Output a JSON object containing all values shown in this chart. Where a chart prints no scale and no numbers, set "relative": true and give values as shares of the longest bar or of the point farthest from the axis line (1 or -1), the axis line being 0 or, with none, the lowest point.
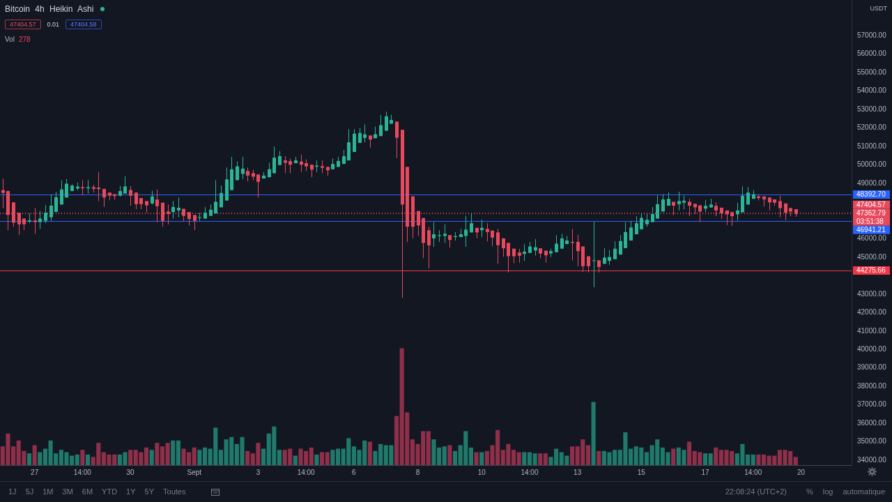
{
  "chart_data": [
    {
      "type": "candlestick",
      "title": "Bitcoin 4h Heikin Ashi",
      "ylabel": "USDT",
      "categories": [
        null,
        null,
        null,
        null,
        null,
        null,
        "27",
        null,
        null,
        null,
        null,
        null,
        null,
        null,
        null,
        "14:00",
        null,
        null,
        null,
        null,
        null,
        null,
        null,
        null,
        "30",
        null,
        null,
        null,
        null,
        null,
        null,
        null,
        null,
        null,
        null,
        null,
        "Sept",
        null,
        null,
        null,
        null,
        null,
        null,
        null,
        null,
        null,
        null,
        null,
        "3",
        null,
        null,
        null,
        null,
        null,
        null,
        null,
        null,
        "14:00",
        null,
        null,
        null,
        null,
        null,
        null,
        null,
        null,
        "6",
        null,
        null,
        null,
        null,
        null,
        null,
        null,
        null,
        null,
        null,
        null,
        "8",
        null,
        null,
        null,
        null,
        null,
        null,
        null,
        null,
        null,
        null,
        null,
        "10",
        null,
        null,
        null,
        null,
        null,
        null,
        null,
        null,
        "14:00",
        null,
        null,
        null,
        null,
        null,
        null,
        null,
        null,
        "13",
        null,
        null,
        null,
        null,
        null,
        null,
        null,
        null,
        null,
        null,
        null,
        "15",
        null,
        null,
        null,
        null,
        null,
        null,
        null,
        null,
        null,
        null,
        null,
        "17",
        null,
        null,
        null,
        null,
        null,
        null,
        null,
        null,
        "14:00",
        null,
        null,
        null,
        null,
        null,
        null,
        null,
        null,
        "20",
        null,
        null,
        null,
        null,
        null,
        null,
        null,
        null,
        null
      ],
      "ohlc": [
        [
          48630,
          49250,
          47660,
          48480
        ],
        [
          48580,
          48600,
          46460,
          47290
        ],
        [
          47970,
          47970,
          46650,
          46870
        ],
        [
          47410,
          47410,
          46210,
          46780
        ],
        [
          47090,
          47090,
          46460,
          46780
        ],
        [
          46930,
          47370,
          46840,
          47000
        ],
        [
          46990,
          47660,
          46270,
          46900
        ],
        [
          46900,
          47500,
          46530,
          47090
        ],
        [
          46970,
          47820,
          46840,
          47410
        ],
        [
          47160,
          48410,
          46970,
          47790
        ],
        [
          47450,
          48540,
          47450,
          48250
        ],
        [
          47850,
          49170,
          47850,
          48670
        ],
        [
          48230,
          49230,
          48230,
          48980
        ],
        [
          48580,
          48950,
          48580,
          48880
        ],
        [
          48720,
          49040,
          48630,
          48820
        ],
        [
          48790,
          49170,
          48350,
          48730
        ],
        [
          48730,
          49170,
          48450,
          48790
        ],
        [
          48790,
          48920,
          48500,
          48700
        ],
        [
          48770,
          49610,
          48040,
          48690
        ],
        [
          48700,
          48700,
          47720,
          48230
        ],
        [
          48500,
          48500,
          48100,
          48330
        ],
        [
          48410,
          48410,
          48100,
          48310
        ],
        [
          48330,
          48860,
          48290,
          48580
        ],
        [
          48450,
          49380,
          48450,
          48830
        ],
        [
          48640,
          48860,
          47790,
          48330
        ],
        [
          48500,
          48500,
          47600,
          47870
        ],
        [
          48200,
          48200,
          47600,
          47870
        ],
        [
          48040,
          48040,
          47410,
          47810
        ],
        [
          47910,
          48600,
          47850,
          48290
        ],
        [
          48120,
          48670,
          46900,
          47760
        ],
        [
          47950,
          47950,
          46650,
          46970
        ],
        [
          47470,
          47850,
          46780,
          47340
        ],
        [
          47440,
          48040,
          47090,
          47720
        ],
        [
          47530,
          48230,
          47160,
          47680
        ],
        [
          47620,
          47620,
          46970,
          47240
        ],
        [
          47440,
          47440,
          46720,
          47070
        ],
        [
          47280,
          47280,
          46460,
          46970
        ],
        [
          47130,
          47410,
          46970,
          47170
        ],
        [
          47090,
          47720,
          47090,
          47410
        ],
        [
          47240,
          47850,
          47240,
          47570
        ],
        [
          47370,
          49170,
          47370,
          48000
        ],
        [
          47700,
          48880,
          47700,
          48480
        ],
        [
          48070,
          49860,
          48070,
          49210
        ],
        [
          48630,
          50430,
          48630,
          49760
        ],
        [
          49170,
          50180,
          49170,
          49920
        ],
        [
          49510,
          50430,
          49230,
          49800
        ],
        [
          49670,
          49860,
          49110,
          49420
        ],
        [
          49550,
          49740,
          49170,
          49360
        ],
        [
          49480,
          49480,
          48230,
          49080
        ],
        [
          49260,
          49610,
          49260,
          49420
        ],
        [
          49330,
          50110,
          49330,
          49760
        ],
        [
          49550,
          50990,
          49550,
          50390
        ],
        [
          49990,
          50740,
          49990,
          50470
        ],
        [
          50240,
          50470,
          49550,
          50110
        ],
        [
          50200,
          50330,
          49550,
          50010
        ],
        [
          50090,
          50430,
          50090,
          50240
        ],
        [
          50180,
          50560,
          49610,
          50010
        ],
        [
          50090,
          50300,
          49670,
          49920
        ],
        [
          50010,
          50010,
          49330,
          49740
        ],
        [
          49900,
          50240,
          49610,
          49960
        ],
        [
          49930,
          50240,
          49550,
          49840
        ],
        [
          49890,
          49890,
          49420,
          49710
        ],
        [
          49760,
          50340,
          49760,
          50050
        ],
        [
          49890,
          50430,
          49890,
          50210
        ],
        [
          50050,
          50810,
          50050,
          50470
        ],
        [
          50240,
          51940,
          50240,
          51220
        ],
        [
          50700,
          51940,
          50700,
          51690
        ],
        [
          51190,
          52000,
          51190,
          51730
        ],
        [
          51460,
          52190,
          51220,
          51650
        ],
        [
          51590,
          51590,
          50930,
          51370
        ],
        [
          51440,
          52070,
          51440,
          51660
        ],
        [
          51560,
          52700,
          51560,
          52150
        ],
        [
          51850,
          52880,
          51850,
          52630
        ],
        [
          52230,
          52700,
          52230,
          52430
        ],
        [
          52340,
          52340,
          50370,
          51470
        ],
        [
          51900,
          51900,
          42800,
          47850
        ],
        [
          49890,
          49890,
          45830,
          46650
        ],
        [
          48290,
          48290,
          46020,
          46650
        ],
        [
          47500,
          47500,
          46150,
          46720
        ],
        [
          47120,
          47120,
          44950,
          45770
        ],
        [
          46460,
          46650,
          44390,
          45640
        ],
        [
          46020,
          46900,
          45560,
          46240
        ],
        [
          46140,
          46460,
          45830,
          46190
        ],
        [
          46150,
          46780,
          45770,
          46270
        ],
        [
          46190,
          46190,
          45520,
          45930
        ],
        [
          46090,
          46360,
          45900,
          46140
        ],
        [
          46090,
          46530,
          46090,
          46240
        ],
        [
          46150,
          47240,
          45560,
          46490
        ],
        [
          46340,
          47410,
          46340,
          46840
        ],
        [
          46590,
          46590,
          46020,
          46340
        ],
        [
          46460,
          47030,
          46090,
          46590
        ],
        [
          46530,
          46840,
          45860,
          46360
        ],
        [
          46440,
          46440,
          45580,
          46060
        ],
        [
          46340,
          46530,
          44640,
          45650
        ],
        [
          46020,
          46020,
          45020,
          45480
        ],
        [
          45770,
          45770,
          44170,
          45050
        ],
        [
          45460,
          45460,
          44670,
          45050
        ],
        [
          45250,
          45450,
          44700,
          45080
        ],
        [
          45180,
          45710,
          44800,
          45300
        ],
        [
          45230,
          45830,
          45230,
          45580
        ],
        [
          45360,
          45980,
          45080,
          45540
        ],
        [
          45480,
          45480,
          44950,
          45200
        ],
        [
          45350,
          45350,
          44700,
          45100
        ],
        [
          45200,
          45460,
          45010,
          45330
        ],
        [
          45270,
          46190,
          45270,
          45730
        ],
        [
          45460,
          46270,
          45460,
          46020
        ],
        [
          45710,
          46150,
          45710,
          45900
        ],
        [
          45830,
          46530,
          44830,
          45770
        ],
        [
          45830,
          46210,
          44510,
          45330
        ],
        [
          45580,
          45580,
          44200,
          44510
        ],
        [
          45050,
          45050,
          44170,
          44510
        ],
        [
          44800,
          46920,
          43370,
          44830
        ],
        [
          44830,
          44830,
          44170,
          44470
        ],
        [
          44640,
          45480,
          44640,
          44980
        ],
        [
          44800,
          45390,
          44580,
          45010
        ],
        [
          44890,
          45860,
          44890,
          45460
        ],
        [
          45140,
          46190,
          45140,
          45870
        ],
        [
          45490,
          46900,
          45490,
          46360
        ],
        [
          45900,
          46970,
          45900,
          46610
        ],
        [
          46240,
          47220,
          46240,
          46840
        ],
        [
          46510,
          47410,
          46510,
          47130
        ],
        [
          46780,
          47340,
          46650,
          47030
        ],
        [
          46900,
          47720,
          46900,
          47340
        ],
        [
          47090,
          48350,
          47090,
          47870
        ],
        [
          47470,
          48410,
          47470,
          48130
        ],
        [
          47790,
          48500,
          47790,
          48160
        ],
        [
          48000,
          48000,
          47280,
          47790
        ],
        [
          47870,
          48540,
          47530,
          48040
        ],
        [
          47950,
          48330,
          47600,
          48060
        ],
        [
          48000,
          48160,
          47220,
          47790
        ],
        [
          47890,
          47890,
          47340,
          47700
        ],
        [
          47810,
          47810,
          46900,
          47470
        ],
        [
          47630,
          48100,
          47450,
          47780
        ],
        [
          47690,
          48160,
          47690,
          47850
        ],
        [
          47780,
          47970,
          47220,
          47530
        ],
        [
          47680,
          47680,
          47070,
          47380
        ],
        [
          47530,
          47530,
          46740,
          47320
        ],
        [
          47440,
          47440,
          46690,
          47220
        ],
        [
          47320,
          47950,
          46990,
          47530
        ],
        [
          47430,
          48830,
          47430,
          48330
        ],
        [
          47850,
          48790,
          47850,
          48500
        ],
        [
          48160,
          48630,
          48160,
          48410
        ],
        [
          48290,
          48410,
          48070,
          48200
        ],
        [
          48290,
          48290,
          47750,
          48130
        ],
        [
          48230,
          48230,
          47530,
          47970
        ],
        [
          48130,
          48130,
          47780,
          47950
        ],
        [
          48040,
          48330,
          47160,
          47660
        ],
        [
          47910,
          47910,
          46990,
          47410
        ],
        [
          47660,
          47660,
          47220,
          47470
        ],
        [
          47600,
          47600,
          47190,
          47340
        ],
        null,
        null,
        null,
        null,
        null,
        null,
        null,
        null,
        null,
        null
      ],
      "colors": [
        "#e8495c",
        "#e8495c",
        "#e8495c",
        "#e8495c",
        "#e8495c",
        "#2bb597",
        "#e8495c",
        "#2bb597",
        "#2bb597",
        "#2bb597",
        "#2bb597",
        "#2bb597",
        "#2bb597",
        "#2bb597",
        "#2bb597",
        "#e8495c",
        "#2bb597",
        "#e8495c",
        "#e8495c",
        "#e8495c",
        "#e8495c",
        "#e8495c",
        "#2bb597",
        "#2bb597",
        "#e8495c",
        "#e8495c",
        "#e8495c",
        "#e8495c",
        "#2bb597",
        "#e8495c",
        "#e8495c",
        "#e8495c",
        "#2bb597",
        "#2bb597",
        "#e8495c",
        "#e8495c",
        "#e8495c",
        "#2bb597",
        "#2bb597",
        "#2bb597",
        "#2bb597",
        "#2bb597",
        "#2bb597",
        "#2bb597",
        "#2bb597",
        "#2bb597",
        "#e8495c",
        "#e8495c",
        "#e8495c",
        "#2bb597",
        "#2bb597",
        "#2bb597",
        "#2bb597",
        "#e8495c",
        "#e8495c",
        "#2bb597",
        "#e8495c",
        "#e8495c",
        "#e8495c",
        "#2bb597",
        "#e8495c",
        "#e8495c",
        "#2bb597",
        "#2bb597",
        "#2bb597",
        "#2bb597",
        "#2bb597",
        "#2bb597",
        "#2bb597",
        "#e8495c",
        "#2bb597",
        "#2bb597",
        "#2bb597",
        "#2bb597",
        "#e8495c",
        "#e8495c",
        "#e8495c",
        "#e8495c",
        "#e8495c",
        "#e8495c",
        "#e8495c",
        "#2bb597",
        "#2bb597",
        "#2bb597",
        "#e8495c",
        "#2bb597",
        "#2bb597",
        "#2bb597",
        "#2bb597",
        "#e8495c",
        "#2bb597",
        "#e8495c",
        "#e8495c",
        "#e8495c",
        "#e8495c",
        "#e8495c",
        "#e8495c",
        "#e8495c",
        "#2bb597",
        "#2bb597",
        "#2bb597",
        "#e8495c",
        "#e8495c",
        "#2bb597",
        "#2bb597",
        "#2bb597",
        "#2bb597",
        "#e8495c",
        "#e8495c",
        "#e8495c",
        "#e8495c",
        "#2bb597",
        "#e8495c",
        "#2bb597",
        "#2bb597",
        "#2bb597",
        "#2bb597",
        "#2bb597",
        "#2bb597",
        "#2bb597",
        "#2bb597",
        "#2bb597",
        "#2bb597",
        "#2bb597",
        "#2bb597",
        "#2bb597",
        "#e8495c",
        "#2bb597",
        "#2bb597",
        "#e8495c",
        "#e8495c",
        "#e8495c",
        "#2bb597",
        "#2bb597",
        "#e8495c",
        "#e8495c",
        "#e8495c",
        "#e8495c",
        "#2bb597",
        "#2bb597",
        "#2bb597",
        "#2bb597",
        "#e8495c",
        "#e8495c",
        "#e8495c",
        "#e8495c",
        "#e8495c",
        "#e8495c",
        "#e8495c",
        "#e8495c",
        null,
        null,
        null,
        null,
        null,
        null,
        null,
        null,
        null,
        null
      ],
      "ylim": [
        33740,
        58930
      ],
      "yticks": [
        {
          "value": 34000,
          "label": "34000.00"
        },
        {
          "value": 35000,
          "label": "35000.00"
        },
        {
          "value": 36000,
          "label": "36000.00"
        },
        {
          "value": 37000,
          "label": "37000.00"
        },
        {
          "value": 38000,
          "label": "38000.00"
        },
        {
          "value": 39000,
          "label": "39000.00"
        },
        {
          "value": 40000,
          "label": "40000.00"
        },
        {
          "value": 41000,
          "label": "41000.00"
        },
        {
          "value": 42000,
          "label": "42000.00"
        },
        {
          "value": 43000,
          "label": "43000.00"
        },
        {
          "value": 45000,
          "label": "45000.00"
        },
        {
          "value": 46000,
          "label": "46000.00"
        },
        {
          "value": 49000,
          "label": "49000.00"
        },
        {
          "value": 50000,
          "label": "50000.00"
        },
        {
          "value": 51000,
          "label": "51000.00"
        },
        {
          "value": 52000,
          "label": "52000.00"
        },
        {
          "value": 53000,
          "label": "53000.00"
        },
        {
          "value": 54000,
          "label": "54000.00"
        },
        {
          "value": 55000,
          "label": "55000.00"
        },
        {
          "value": 56000,
          "label": "56000.00"
        },
        {
          "value": 57000,
          "label": "57000.00"
        }
      ],
      "ref_lines": [
        {
          "axis": "y",
          "value": 48392.7,
          "label": "48392.70",
          "color": "#2962ff"
        },
        {
          "axis": "y",
          "value": 47404.57,
          "label": "47404.57",
          "color": "#e8495c",
          "line_style": "dotted"
        },
        {
          "axis": "y",
          "value": 47362.79,
          "label": "47362.79",
          "color": "#e8495c",
          "line_style": "dotted"
        },
        {
          "axis": "y",
          "value": 46941.21,
          "label": "46941.21",
          "color": "#2962ff"
        },
        {
          "axis": "y",
          "value": 44275.66,
          "label": "44275.66",
          "color": "#f23645"
        }
      ],
      "annotations": [
        "47404.57",
        "0.01",
        "47404.58",
        "1J",
        "5J",
        "1M",
        "3M",
        "6M",
        "YTD",
        "1Y",
        "5Y",
        "Toutes",
        "22:08:24 (UTC+2)",
        "%",
        "log",
        "automatique",
        "03:51:38"
      ]
    },
    {
      "type": "bar",
      "relative": true,
      "title": "Vol",
      "annotations": [
        "278"
      ],
      "categories": [
        null,
        null,
        null,
        null,
        null,
        null,
        null,
        null,
        null,
        null,
        null,
        null,
        null,
        null,
        null,
        null,
        null,
        null,
        null,
        null,
        null,
        null,
        null,
        null,
        null,
        null,
        null,
        null,
        null,
        null,
        null,
        null,
        null,
        null,
        null,
        null,
        null,
        null,
        null,
        null,
        null,
        null,
        null,
        null,
        null,
        null,
        null,
        null,
        null,
        null,
        null,
        null,
        null,
        null,
        null,
        null,
        null,
        null,
        null,
        null,
        null,
        null,
        null,
        null,
        null,
        null,
        null,
        null,
        null,
        null,
        null,
        null,
        null,
        null,
        null,
        null,
        null,
        null,
        null,
        null,
        null,
        null,
        null,
        null,
        null,
        null,
        null,
        null,
        null,
        null,
        null,
        null,
        null,
        null,
        null,
        null,
        null,
        null,
        null,
        null,
        null,
        null,
        null,
        null,
        null,
        null,
        null,
        null,
        null,
        null,
        null,
        null,
        null,
        null,
        null,
        null,
        null,
        null,
        null,
        null,
        null,
        null,
        null,
        null,
        null,
        null,
        null,
        null,
        null,
        null,
        null,
        null,
        null,
        null,
        null,
        null,
        null,
        null,
        null,
        null,
        null,
        null,
        null,
        null,
        null,
        null,
        null,
        null,
        null,
        null,
        null,
        null,
        null,
        null,
        null,
        null,
        null,
        null,
        null,
        null
      ],
      "values": [
        0.16,
        0.27,
        0.16,
        0.21,
        0.12,
        0.1,
        0.17,
        0.11,
        0.14,
        0.21,
        0.1,
        0.13,
        0.11,
        0.08,
        0.09,
        0.13,
        0.09,
        0.07,
        0.19,
        0.11,
        0.09,
        0.09,
        0.09,
        0.11,
        0.13,
        0.13,
        0.11,
        0.15,
        0.13,
        0.19,
        0.16,
        0.19,
        0.21,
        0.21,
        0.14,
        0.11,
        0.15,
        0.13,
        0.15,
        0.14,
        0.32,
        0.13,
        0.22,
        0.24,
        0.18,
        0.24,
        0.12,
        0.1,
        0.19,
        0.14,
        0.27,
        0.33,
        0.13,
        0.13,
        0.14,
        0.08,
        0.14,
        0.12,
        0.15,
        0.09,
        0.11,
        0.11,
        0.13,
        0.14,
        0.14,
        0.23,
        0.16,
        0.13,
        0.21,
        0.2,
        0.12,
        0.18,
        0.17,
        0.17,
        0.42,
        1,
        0.45,
        0.22,
        0.18,
        0.29,
        0.29,
        0.22,
        0.15,
        0.16,
        0.17,
        0.12,
        0.17,
        0.29,
        0.15,
        0.11,
        0.11,
        0.12,
        0.17,
        0.3,
        0.13,
        0.18,
        0.13,
        0.11,
        0.11,
        0.11,
        0.1,
        0.1,
        0.1,
        0.07,
        0.14,
        0.11,
        0.08,
        0.16,
        0.16,
        0.22,
        0.17,
        0.54,
        0.12,
        0.12,
        0.11,
        0.13,
        0.13,
        0.28,
        0.14,
        0.16,
        0.15,
        0.11,
        0.17,
        0.22,
        0.15,
        0.11,
        0.14,
        0.15,
        0.13,
        0.2,
        0.12,
        0.11,
        0.1,
        0.1,
        0.15,
        0.13,
        0.13,
        0.12,
        0.1,
        0.18,
        0.09,
        0.09,
        0.09,
        0.09,
        0.08,
        0.08,
        0.13,
        0.13,
        0.12,
        0.07,
        null,
        null,
        null,
        null,
        null,
        null,
        null,
        null,
        null,
        null
      ],
      "colors": [
        "#8f2f49",
        "#8f2f49",
        "#8f2f49",
        "#8f2f49",
        "#8f2f49",
        "#1f7a6c",
        "#8f2f49",
        "#1f7a6c",
        "#1f7a6c",
        "#1f7a6c",
        "#1f7a6c",
        "#1f7a6c",
        "#1f7a6c",
        "#1f7a6c",
        "#1f7a6c",
        "#8f2f49",
        "#1f7a6c",
        "#8f2f49",
        "#8f2f49",
        "#8f2f49",
        "#8f2f49",
        "#8f2f49",
        "#1f7a6c",
        "#1f7a6c",
        "#8f2f49",
        "#8f2f49",
        "#8f2f49",
        "#8f2f49",
        "#1f7a6c",
        "#8f2f49",
        "#8f2f49",
        "#8f2f49",
        "#1f7a6c",
        "#1f7a6c",
        "#8f2f49",
        "#8f2f49",
        "#8f2f49",
        "#1f7a6c",
        "#1f7a6c",
        "#1f7a6c",
        "#1f7a6c",
        "#1f7a6c",
        "#1f7a6c",
        "#1f7a6c",
        "#1f7a6c",
        "#1f7a6c",
        "#8f2f49",
        "#8f2f49",
        "#8f2f49",
        "#1f7a6c",
        "#1f7a6c",
        "#1f7a6c",
        "#1f7a6c",
        "#8f2f49",
        "#8f2f49",
        "#1f7a6c",
        "#8f2f49",
        "#8f2f49",
        "#8f2f49",
        "#1f7a6c",
        "#8f2f49",
        "#8f2f49",
        "#1f7a6c",
        "#1f7a6c",
        "#1f7a6c",
        "#1f7a6c",
        "#1f7a6c",
        "#1f7a6c",
        "#1f7a6c",
        "#8f2f49",
        "#1f7a6c",
        "#1f7a6c",
        "#1f7a6c",
        "#1f7a6c",
        "#8f2f49",
        "#8f2f49",
        "#8f2f49",
        "#8f2f49",
        "#8f2f49",
        "#8f2f49",
        "#8f2f49",
        "#1f7a6c",
        "#1f7a6c",
        "#1f7a6c",
        "#8f2f49",
        "#1f7a6c",
        "#1f7a6c",
        "#1f7a6c",
        "#1f7a6c",
        "#8f2f49",
        "#1f7a6c",
        "#8f2f49",
        "#8f2f49",
        "#8f2f49",
        "#8f2f49",
        "#8f2f49",
        "#8f2f49",
        "#8f2f49",
        "#1f7a6c",
        "#1f7a6c",
        "#1f7a6c",
        "#8f2f49",
        "#8f2f49",
        "#1f7a6c",
        "#1f7a6c",
        "#1f7a6c",
        "#1f7a6c",
        "#8f2f49",
        "#8f2f49",
        "#8f2f49",
        "#8f2f49",
        "#1f7a6c",
        "#8f2f49",
        "#1f7a6c",
        "#1f7a6c",
        "#1f7a6c",
        "#1f7a6c",
        "#1f7a6c",
        "#1f7a6c",
        "#1f7a6c",
        "#1f7a6c",
        "#1f7a6c",
        "#1f7a6c",
        "#1f7a6c",
        "#1f7a6c",
        "#1f7a6c",
        "#8f2f49",
        "#1f7a6c",
        "#1f7a6c",
        "#8f2f49",
        "#8f2f49",
        "#8f2f49",
        "#1f7a6c",
        "#1f7a6c",
        "#8f2f49",
        "#8f2f49",
        "#8f2f49",
        "#8f2f49",
        "#1f7a6c",
        "#1f7a6c",
        "#1f7a6c",
        "#1f7a6c",
        "#8f2f49",
        "#8f2f49",
        "#8f2f49",
        "#8f2f49",
        "#8f2f49",
        "#8f2f49",
        "#8f2f49",
        "#8f2f49",
        null,
        null,
        null,
        null,
        null,
        null,
        null,
        null,
        null,
        null
      ]
    }
  ]
}
